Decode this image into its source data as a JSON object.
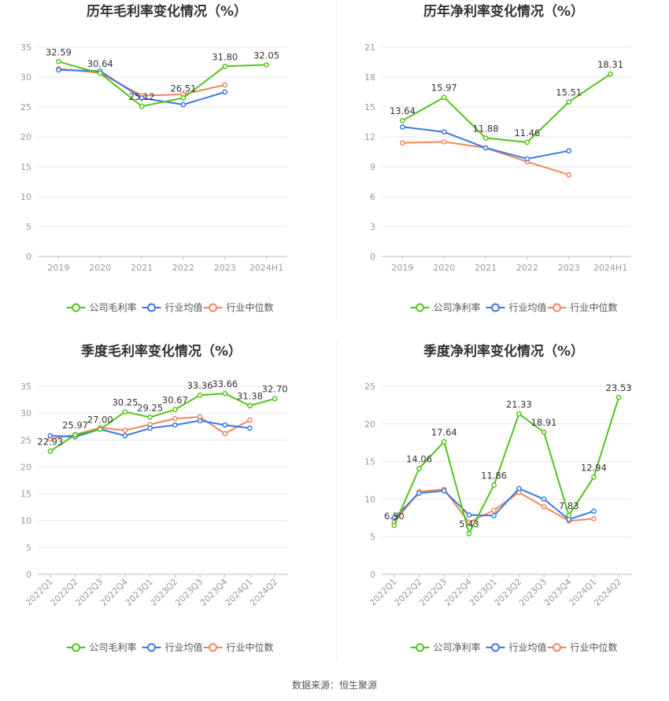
{
  "source": "数据来源：恒生聚源",
  "colors": {
    "company": "#52c41a",
    "avg": "#3b78e7",
    "median": "#f0865d",
    "axis": "#999999",
    "grid": "#e6e6e6",
    "label": "#333333",
    "title": "#333333"
  },
  "chart_data": [
    {
      "type": "line",
      "title": "历年毛利率变化情况（%）",
      "categories": [
        "2019",
        "2020",
        "2021",
        "2022",
        "2023",
        "2024H1"
      ],
      "ylim": [
        0,
        35
      ],
      "yticks": [
        0,
        5,
        10,
        15,
        20,
        25,
        30,
        35
      ],
      "series": [
        {
          "name": "公司毛利率",
          "key": "company",
          "values": [
            32.59,
            30.64,
            25.12,
            26.51,
            31.8,
            32.05
          ],
          "labels": [
            "32.59",
            "30.64",
            "25.12",
            "26.51",
            "31.80",
            "32.05"
          ]
        },
        {
          "name": "行业均值",
          "key": "avg",
          "values": [
            31.2,
            31.0,
            26.5,
            25.4,
            27.5,
            null
          ]
        },
        {
          "name": "行业中位数",
          "key": "median",
          "values": [
            31.4,
            30.7,
            26.9,
            27.1,
            28.7,
            null
          ]
        }
      ]
    },
    {
      "type": "line",
      "title": "历年净利率变化情况（%）",
      "categories": [
        "2019",
        "2020",
        "2021",
        "2022",
        "2023",
        "2024H1"
      ],
      "ylim": [
        0,
        21
      ],
      "yticks": [
        0,
        3,
        6,
        9,
        12,
        15,
        18,
        21
      ],
      "series": [
        {
          "name": "公司净利率",
          "key": "company",
          "values": [
            13.64,
            15.97,
            11.88,
            11.46,
            15.51,
            18.31
          ],
          "labels": [
            "13.64",
            "15.97",
            "11.88",
            "11.46",
            "15.51",
            "18.31"
          ]
        },
        {
          "name": "行业均值",
          "key": "avg",
          "values": [
            13.0,
            12.5,
            10.9,
            9.8,
            10.6,
            null
          ]
        },
        {
          "name": "行业中位数",
          "key": "median",
          "values": [
            11.4,
            11.5,
            10.9,
            9.5,
            8.2,
            null
          ]
        }
      ]
    },
    {
      "type": "line",
      "title": "季度毛利率变化情况（%）",
      "categories": [
        "2022Q1",
        "2022Q2",
        "2022Q3",
        "2022Q4",
        "2023Q1",
        "2023Q2",
        "2023Q3",
        "2023Q4",
        "2024Q1",
        "2024Q2"
      ],
      "ylim": [
        0,
        35
      ],
      "yticks": [
        0,
        5,
        10,
        15,
        20,
        25,
        30,
        35
      ],
      "rotateX": true,
      "series": [
        {
          "name": "公司毛利率",
          "key": "company",
          "values": [
            22.93,
            25.97,
            27.0,
            30.25,
            29.25,
            30.67,
            33.36,
            33.66,
            31.38,
            32.7
          ],
          "labels": [
            "22.93",
            "25.97",
            "27.00",
            "30.25",
            "29.25",
            "30.67",
            "33.36",
            "33.66",
            "31.38",
            "32.70"
          ]
        },
        {
          "name": "行业均值",
          "key": "avg",
          "values": [
            25.8,
            25.6,
            27.0,
            25.8,
            27.2,
            27.8,
            28.6,
            27.8,
            27.2,
            null
          ]
        },
        {
          "name": "行业中位数",
          "key": "median",
          "values": [
            25.2,
            26.0,
            27.3,
            26.8,
            27.9,
            29.0,
            29.3,
            26.2,
            28.7,
            null
          ]
        }
      ]
    },
    {
      "type": "line",
      "title": "季度净利率变化情况（%）",
      "categories": [
        "2022Q1",
        "2022Q2",
        "2022Q3",
        "2022Q4",
        "2023Q1",
        "2023Q2",
        "2023Q3",
        "2023Q4",
        "2024Q1",
        "2024Q2"
      ],
      "ylim": [
        0,
        25
      ],
      "yticks": [
        0,
        5,
        10,
        15,
        20,
        25
      ],
      "rotateX": true,
      "series": [
        {
          "name": "公司净利率",
          "key": "company",
          "values": [
            6.5,
            14.06,
            17.64,
            5.43,
            11.86,
            21.33,
            18.91,
            7.83,
            12.94,
            23.53
          ],
          "labels": [
            "6.50",
            "14.06",
            "17.64",
            "5.43",
            "11.86",
            "21.33",
            "18.91",
            "7.83",
            "12.94",
            "23.53"
          ]
        },
        {
          "name": "行业均值",
          "key": "avg",
          "values": [
            7.5,
            10.8,
            11.1,
            7.9,
            7.8,
            11.4,
            10.0,
            7.3,
            8.4,
            null
          ]
        },
        {
          "name": "行业中位数",
          "key": "median",
          "values": [
            6.9,
            11.0,
            11.3,
            6.9,
            8.5,
            10.9,
            9.0,
            7.1,
            7.4,
            null
          ]
        }
      ]
    }
  ]
}
